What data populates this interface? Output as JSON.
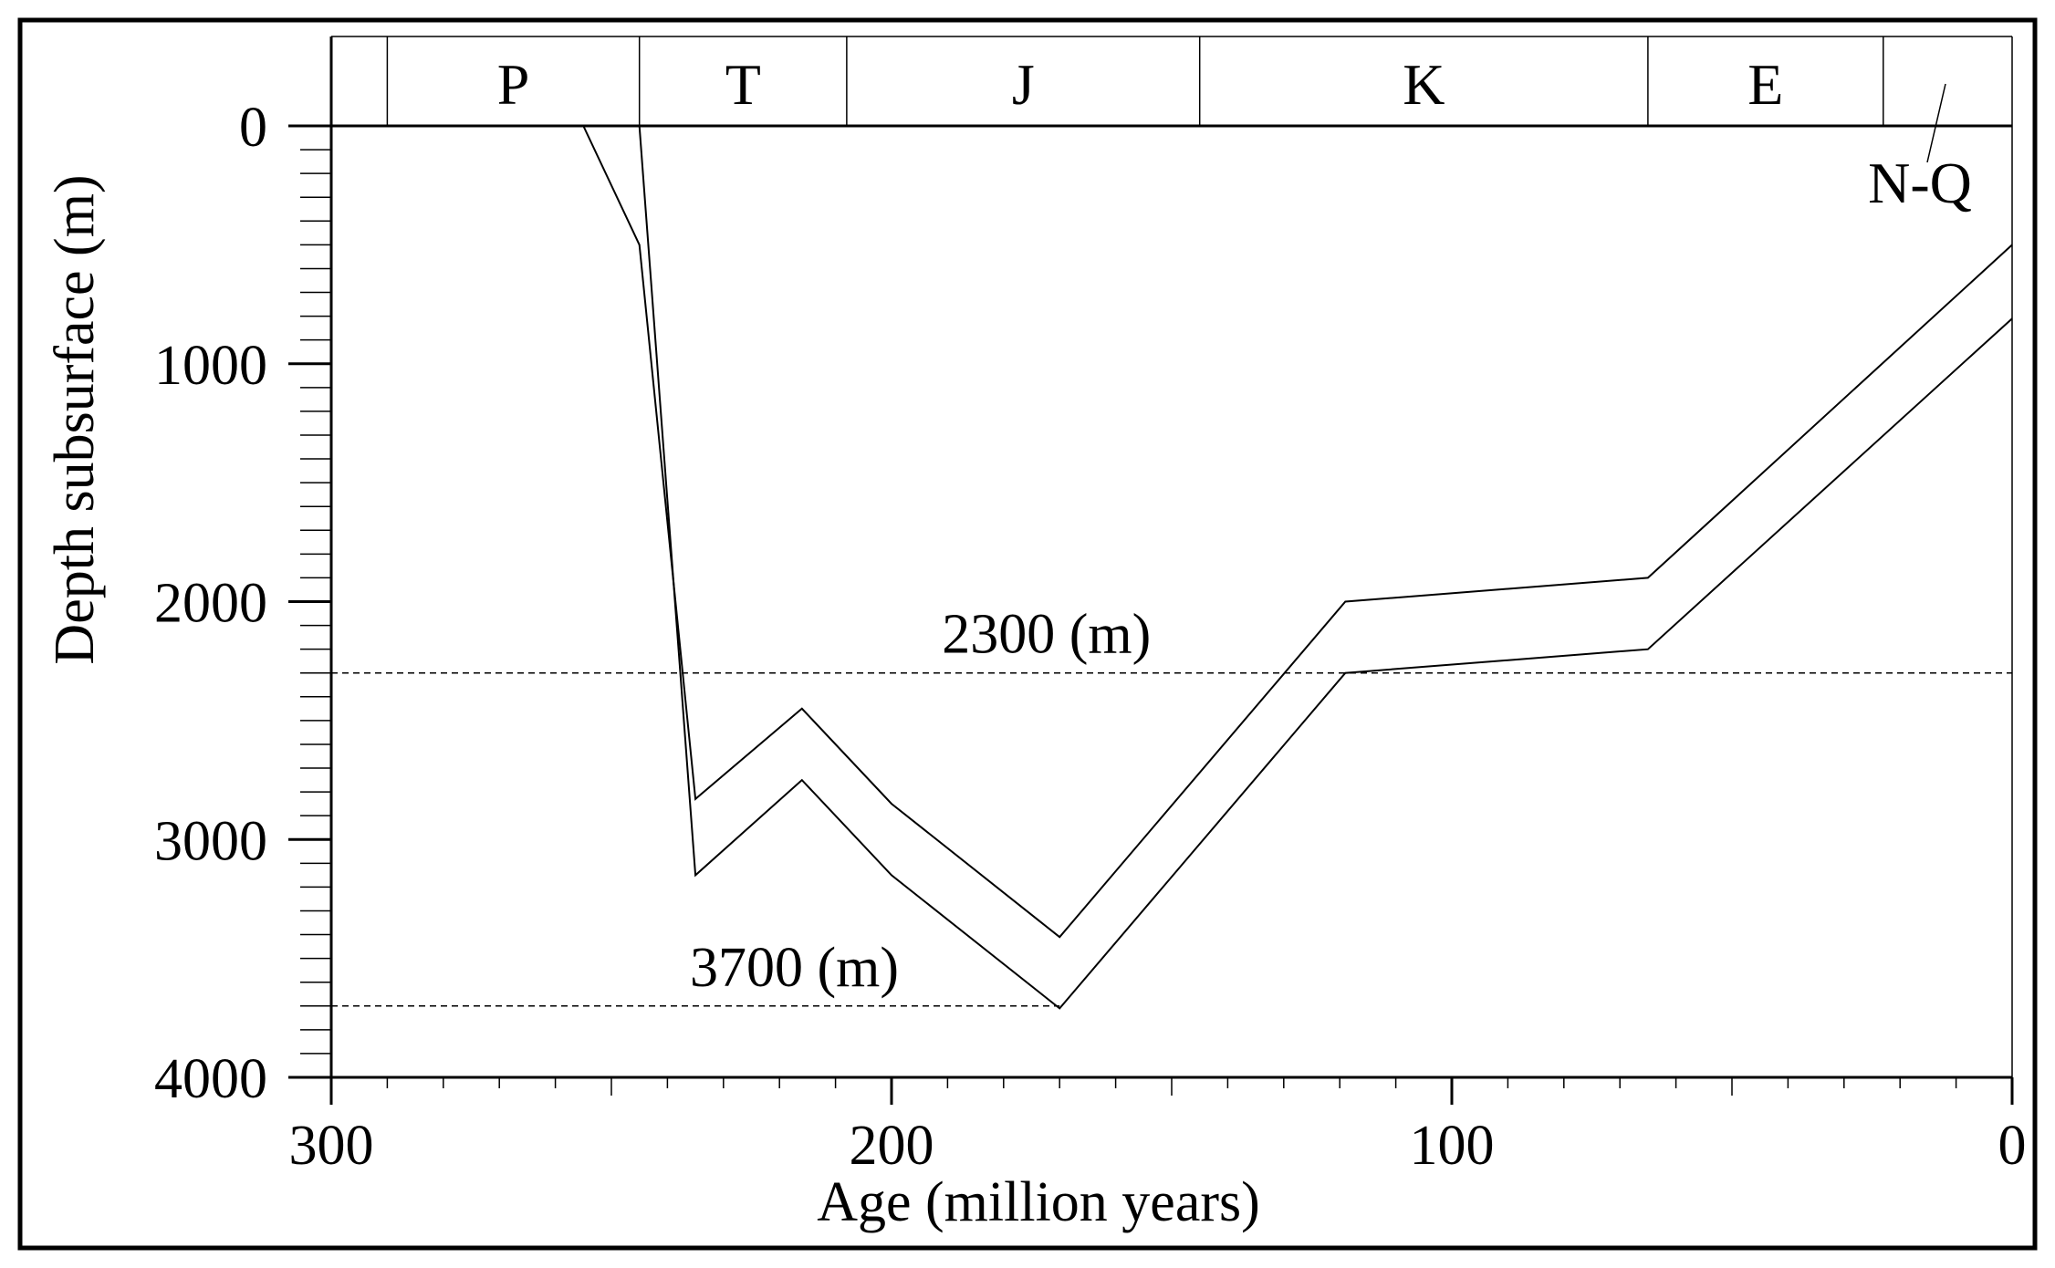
{
  "chart_data": {
    "type": "line",
    "title": "",
    "xlabel": "Age (million years)",
    "ylabel": "Depth subsurface (m)",
    "xlim": [
      300,
      0
    ],
    "ylim": [
      4000,
      0
    ],
    "x_reversed": true,
    "y_reversed": true,
    "x_ticks": [
      300,
      200,
      100,
      0
    ],
    "x_tick_labels": [
      "300",
      "200",
      "100",
      "0"
    ],
    "y_ticks": [
      0,
      1000,
      2000,
      3000,
      4000
    ],
    "y_tick_labels": [
      "0",
      "1000",
      "2000",
      "3000",
      "4000"
    ],
    "grid": false,
    "periods": [
      {
        "label": "P",
        "start": 290,
        "end": 245
      },
      {
        "label": "T",
        "start": 245,
        "end": 208
      },
      {
        "label": "J",
        "start": 208,
        "end": 145
      },
      {
        "label": "K",
        "start": 145,
        "end": 65
      },
      {
        "label": "E",
        "start": 65,
        "end": 23
      },
      {
        "label": "N-Q",
        "start": 23,
        "end": 0
      }
    ],
    "series": [
      {
        "x": [
          255,
          245,
          235,
          216,
          200,
          170,
          119,
          65,
          0
        ],
        "y": [
          0,
          500,
          2830,
          2450,
          2850,
          3410,
          2000,
          1900,
          500
        ]
      },
      {
        "x": [
          245,
          235,
          216,
          200,
          170,
          119,
          65,
          0
        ],
        "y": [
          0,
          3150,
          2750,
          3150,
          3710,
          2300,
          2200,
          810
        ]
      }
    ],
    "reference_lines": [
      {
        "y": 2300,
        "x_from": 300,
        "x_to": 0,
        "label": "2300 (m)",
        "label_x": 191
      },
      {
        "y": 3700,
        "x_from": 300,
        "x_to": 170,
        "label": "3700 (m)",
        "label_x": 236
      }
    ]
  }
}
